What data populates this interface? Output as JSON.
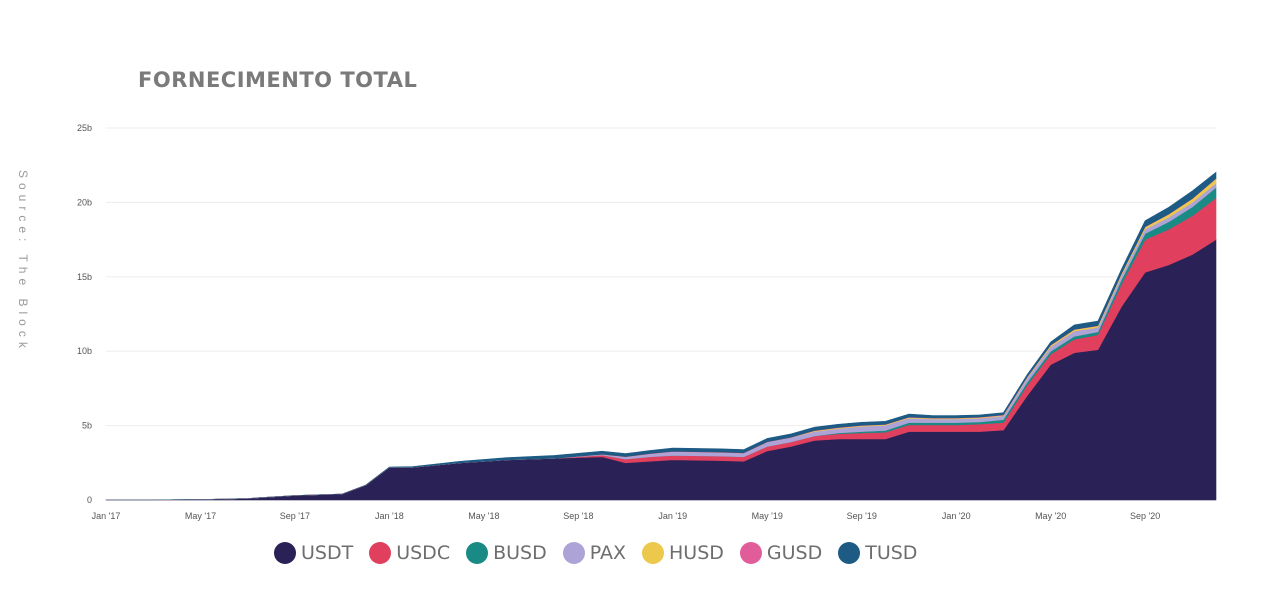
{
  "title": "FORNECIMENTO TOTAL",
  "source": "Source: The Block",
  "chart_data": {
    "type": "area",
    "stacked": true,
    "title": "FORNECIMENTO TOTAL",
    "xlabel": "",
    "ylabel": "",
    "ylim": [
      0,
      25
    ],
    "y_unit": "b",
    "y_ticks": [
      0,
      5,
      10,
      15,
      20,
      25
    ],
    "y_tick_labels": [
      "0",
      "5b",
      "10b",
      "15b",
      "20b",
      "25b"
    ],
    "x_tick_labels": [
      "Jan '17",
      "May '17",
      "Sep '17",
      "Jan '18",
      "May '18",
      "Sep '18",
      "Jan '19",
      "May '19",
      "Sep '19",
      "Jan '20",
      "May '20",
      "Sep '20"
    ],
    "x_range": [
      "2017-01",
      "2020-12"
    ],
    "grid": true,
    "legend_position": "bottom",
    "x": [
      "2017-01",
      "2017-03",
      "2017-05",
      "2017-07",
      "2017-09",
      "2017-11",
      "2017-12",
      "2018-01",
      "2018-02",
      "2018-04",
      "2018-06",
      "2018-08",
      "2018-10",
      "2018-11",
      "2018-12",
      "2019-01",
      "2019-03",
      "2019-04",
      "2019-05",
      "2019-06",
      "2019-07",
      "2019-08",
      "2019-09",
      "2019-10",
      "2019-11",
      "2019-12",
      "2020-01",
      "2020-02",
      "2020-03",
      "2020-04",
      "2020-05",
      "2020-06",
      "2020-07",
      "2020-08",
      "2020-09",
      "2020-10",
      "2020-11",
      "2020-12"
    ],
    "series": [
      {
        "name": "USDT",
        "color": "#2a2257",
        "values": [
          0.01,
          0.01,
          0.03,
          0.1,
          0.3,
          0.4,
          1.0,
          2.2,
          2.2,
          2.5,
          2.7,
          2.8,
          2.9,
          2.5,
          2.6,
          2.7,
          2.65,
          2.6,
          3.3,
          3.6,
          4.0,
          4.1,
          4.1,
          4.1,
          4.6,
          4.6,
          4.6,
          4.6,
          4.7,
          7.0,
          9.1,
          9.9,
          10.1,
          13.0,
          15.3,
          15.8,
          16.5,
          17.5
        ]
      },
      {
        "name": "USDC",
        "color": "#e0405e",
        "values": [
          0,
          0,
          0,
          0,
          0,
          0,
          0,
          0,
          0,
          0,
          0,
          0,
          0.12,
          0.25,
          0.3,
          0.3,
          0.3,
          0.3,
          0.3,
          0.3,
          0.3,
          0.35,
          0.4,
          0.45,
          0.45,
          0.45,
          0.45,
          0.5,
          0.5,
          0.7,
          0.7,
          0.9,
          1.0,
          1.5,
          2.2,
          2.4,
          2.6,
          2.8
        ]
      },
      {
        "name": "BUSD",
        "color": "#1a8a85",
        "values": [
          0,
          0,
          0,
          0,
          0,
          0,
          0,
          0,
          0,
          0,
          0,
          0,
          0,
          0,
          0,
          0,
          0,
          0,
          0,
          0,
          0,
          0.05,
          0.1,
          0.12,
          0.15,
          0.15,
          0.15,
          0.15,
          0.2,
          0.2,
          0.2,
          0.2,
          0.2,
          0.3,
          0.4,
          0.5,
          0.6,
          0.7
        ]
      },
      {
        "name": "PAX",
        "color": "#aea3d6",
        "values": [
          0,
          0,
          0,
          0,
          0,
          0,
          0,
          0,
          0,
          0,
          0,
          0,
          0.05,
          0.15,
          0.2,
          0.25,
          0.25,
          0.25,
          0.3,
          0.3,
          0.3,
          0.3,
          0.35,
          0.35,
          0.3,
          0.25,
          0.25,
          0.25,
          0.25,
          0.3,
          0.3,
          0.35,
          0.3,
          0.3,
          0.3,
          0.3,
          0.3,
          0.3
        ]
      },
      {
        "name": "HUSD",
        "color": "#ecc84c",
        "values": [
          0,
          0,
          0,
          0,
          0,
          0,
          0,
          0,
          0,
          0,
          0,
          0,
          0,
          0,
          0,
          0,
          0,
          0,
          0,
          0,
          0.05,
          0.05,
          0.05,
          0.05,
          0.05,
          0.05,
          0.05,
          0.05,
          0.05,
          0.05,
          0.1,
          0.1,
          0.1,
          0.1,
          0.15,
          0.2,
          0.25,
          0.3
        ]
      },
      {
        "name": "GUSD",
        "color": "#e05d99",
        "values": [
          0,
          0,
          0,
          0,
          0,
          0,
          0,
          0,
          0,
          0,
          0,
          0,
          0.01,
          0.02,
          0.02,
          0.02,
          0.02,
          0.02,
          0.02,
          0.02,
          0.02,
          0.02,
          0.02,
          0.02,
          0.02,
          0.02,
          0.02,
          0.02,
          0.02,
          0.02,
          0.02,
          0.02,
          0.02,
          0.02,
          0.02,
          0.02,
          0.02,
          0.02
        ]
      },
      {
        "name": "TUSD",
        "color": "#1d5b85",
        "values": [
          0,
          0,
          0,
          0,
          0,
          0,
          0,
          0.02,
          0.05,
          0.1,
          0.15,
          0.2,
          0.2,
          0.2,
          0.2,
          0.22,
          0.22,
          0.22,
          0.22,
          0.22,
          0.22,
          0.22,
          0.2,
          0.2,
          0.2,
          0.15,
          0.15,
          0.15,
          0.15,
          0.15,
          0.2,
          0.3,
          0.3,
          0.3,
          0.4,
          0.45,
          0.5,
          0.4
        ]
      }
    ]
  }
}
